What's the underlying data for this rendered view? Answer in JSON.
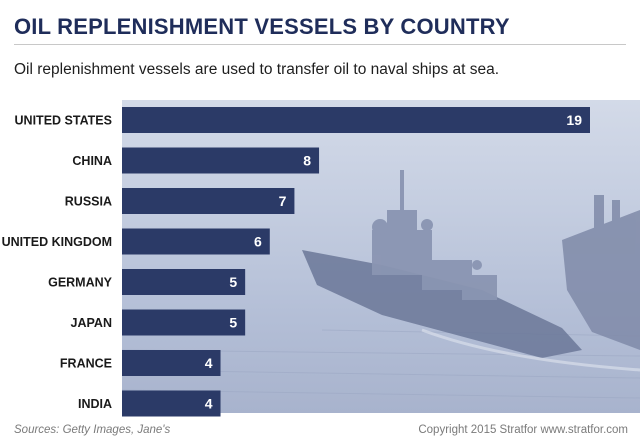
{
  "title": "OIL REPLENISHMENT VESSELS BY COUNTRY",
  "subtitle": "Oil replenishment vessels are used to transfer oil to naval ships at sea.",
  "footer": {
    "sources": "Sources: Getty Images, Jane's",
    "copyright": "Copyright 2015 Stratfor www.stratfor.com"
  },
  "colors": {
    "bar": "#2b3a67",
    "title": "#1f2d5a"
  },
  "chart_data": {
    "type": "bar",
    "orientation": "horizontal",
    "title": "OIL REPLENISHMENT VESSELS BY COUNTRY",
    "categories": [
      "UNITED STATES",
      "CHINA",
      "RUSSIA",
      "UNITED KINGDOM",
      "GERMANY",
      "JAPAN",
      "FRANCE",
      "INDIA"
    ],
    "values": [
      19,
      8,
      7,
      6,
      5,
      5,
      4,
      4
    ],
    "data_labels": true,
    "grid": false,
    "legend": "none"
  }
}
